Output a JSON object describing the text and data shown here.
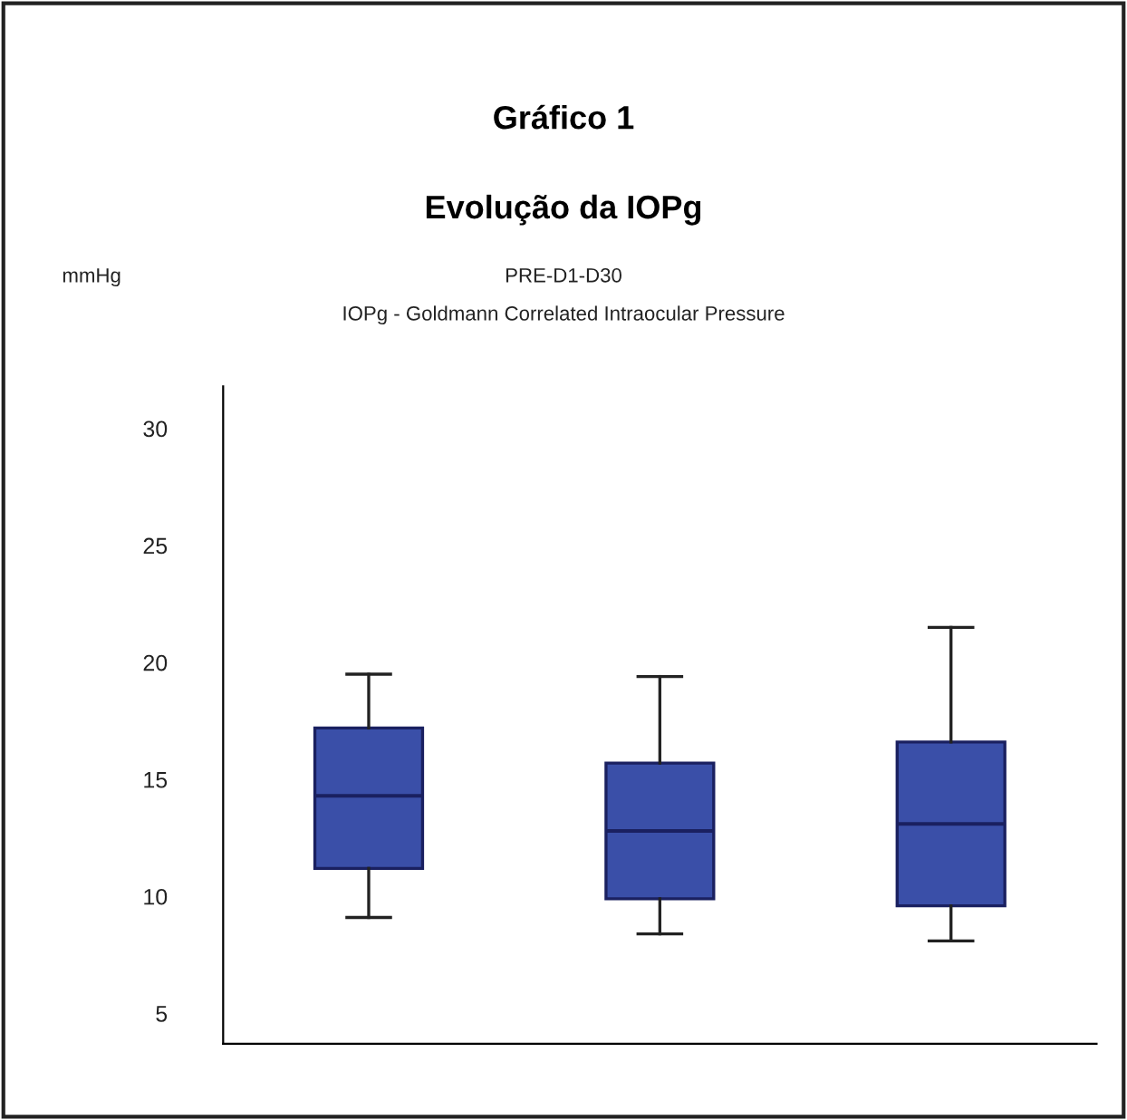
{
  "chart_data": {
    "type": "box",
    "title": "Gráfico 1",
    "subtitle": "Evolução da IOPg",
    "annotations": [
      "mmHg",
      "PRE-D1-D30",
      "IOPg - Goldmann Correlated Intraocular Pressure"
    ],
    "categories": [
      null,
      null,
      null
    ],
    "boxes": [
      {
        "low": 9.1,
        "q1": 11.2,
        "median": 14.3,
        "q3": 17.2,
        "high": 19.5
      },
      {
        "low": 8.4,
        "q1": 9.9,
        "median": 12.8,
        "q3": 15.7,
        "high": 19.4
      },
      {
        "low": 8.1,
        "q1": 9.6,
        "median": 13.1,
        "q3": 16.6,
        "high": 21.5
      }
    ],
    "color": "#3a4fa8",
    "ylim": [
      3.7,
      31.8
    ],
    "yticks": [
      5,
      10,
      15,
      20,
      25,
      30
    ],
    "grid": false,
    "legend": false
  }
}
